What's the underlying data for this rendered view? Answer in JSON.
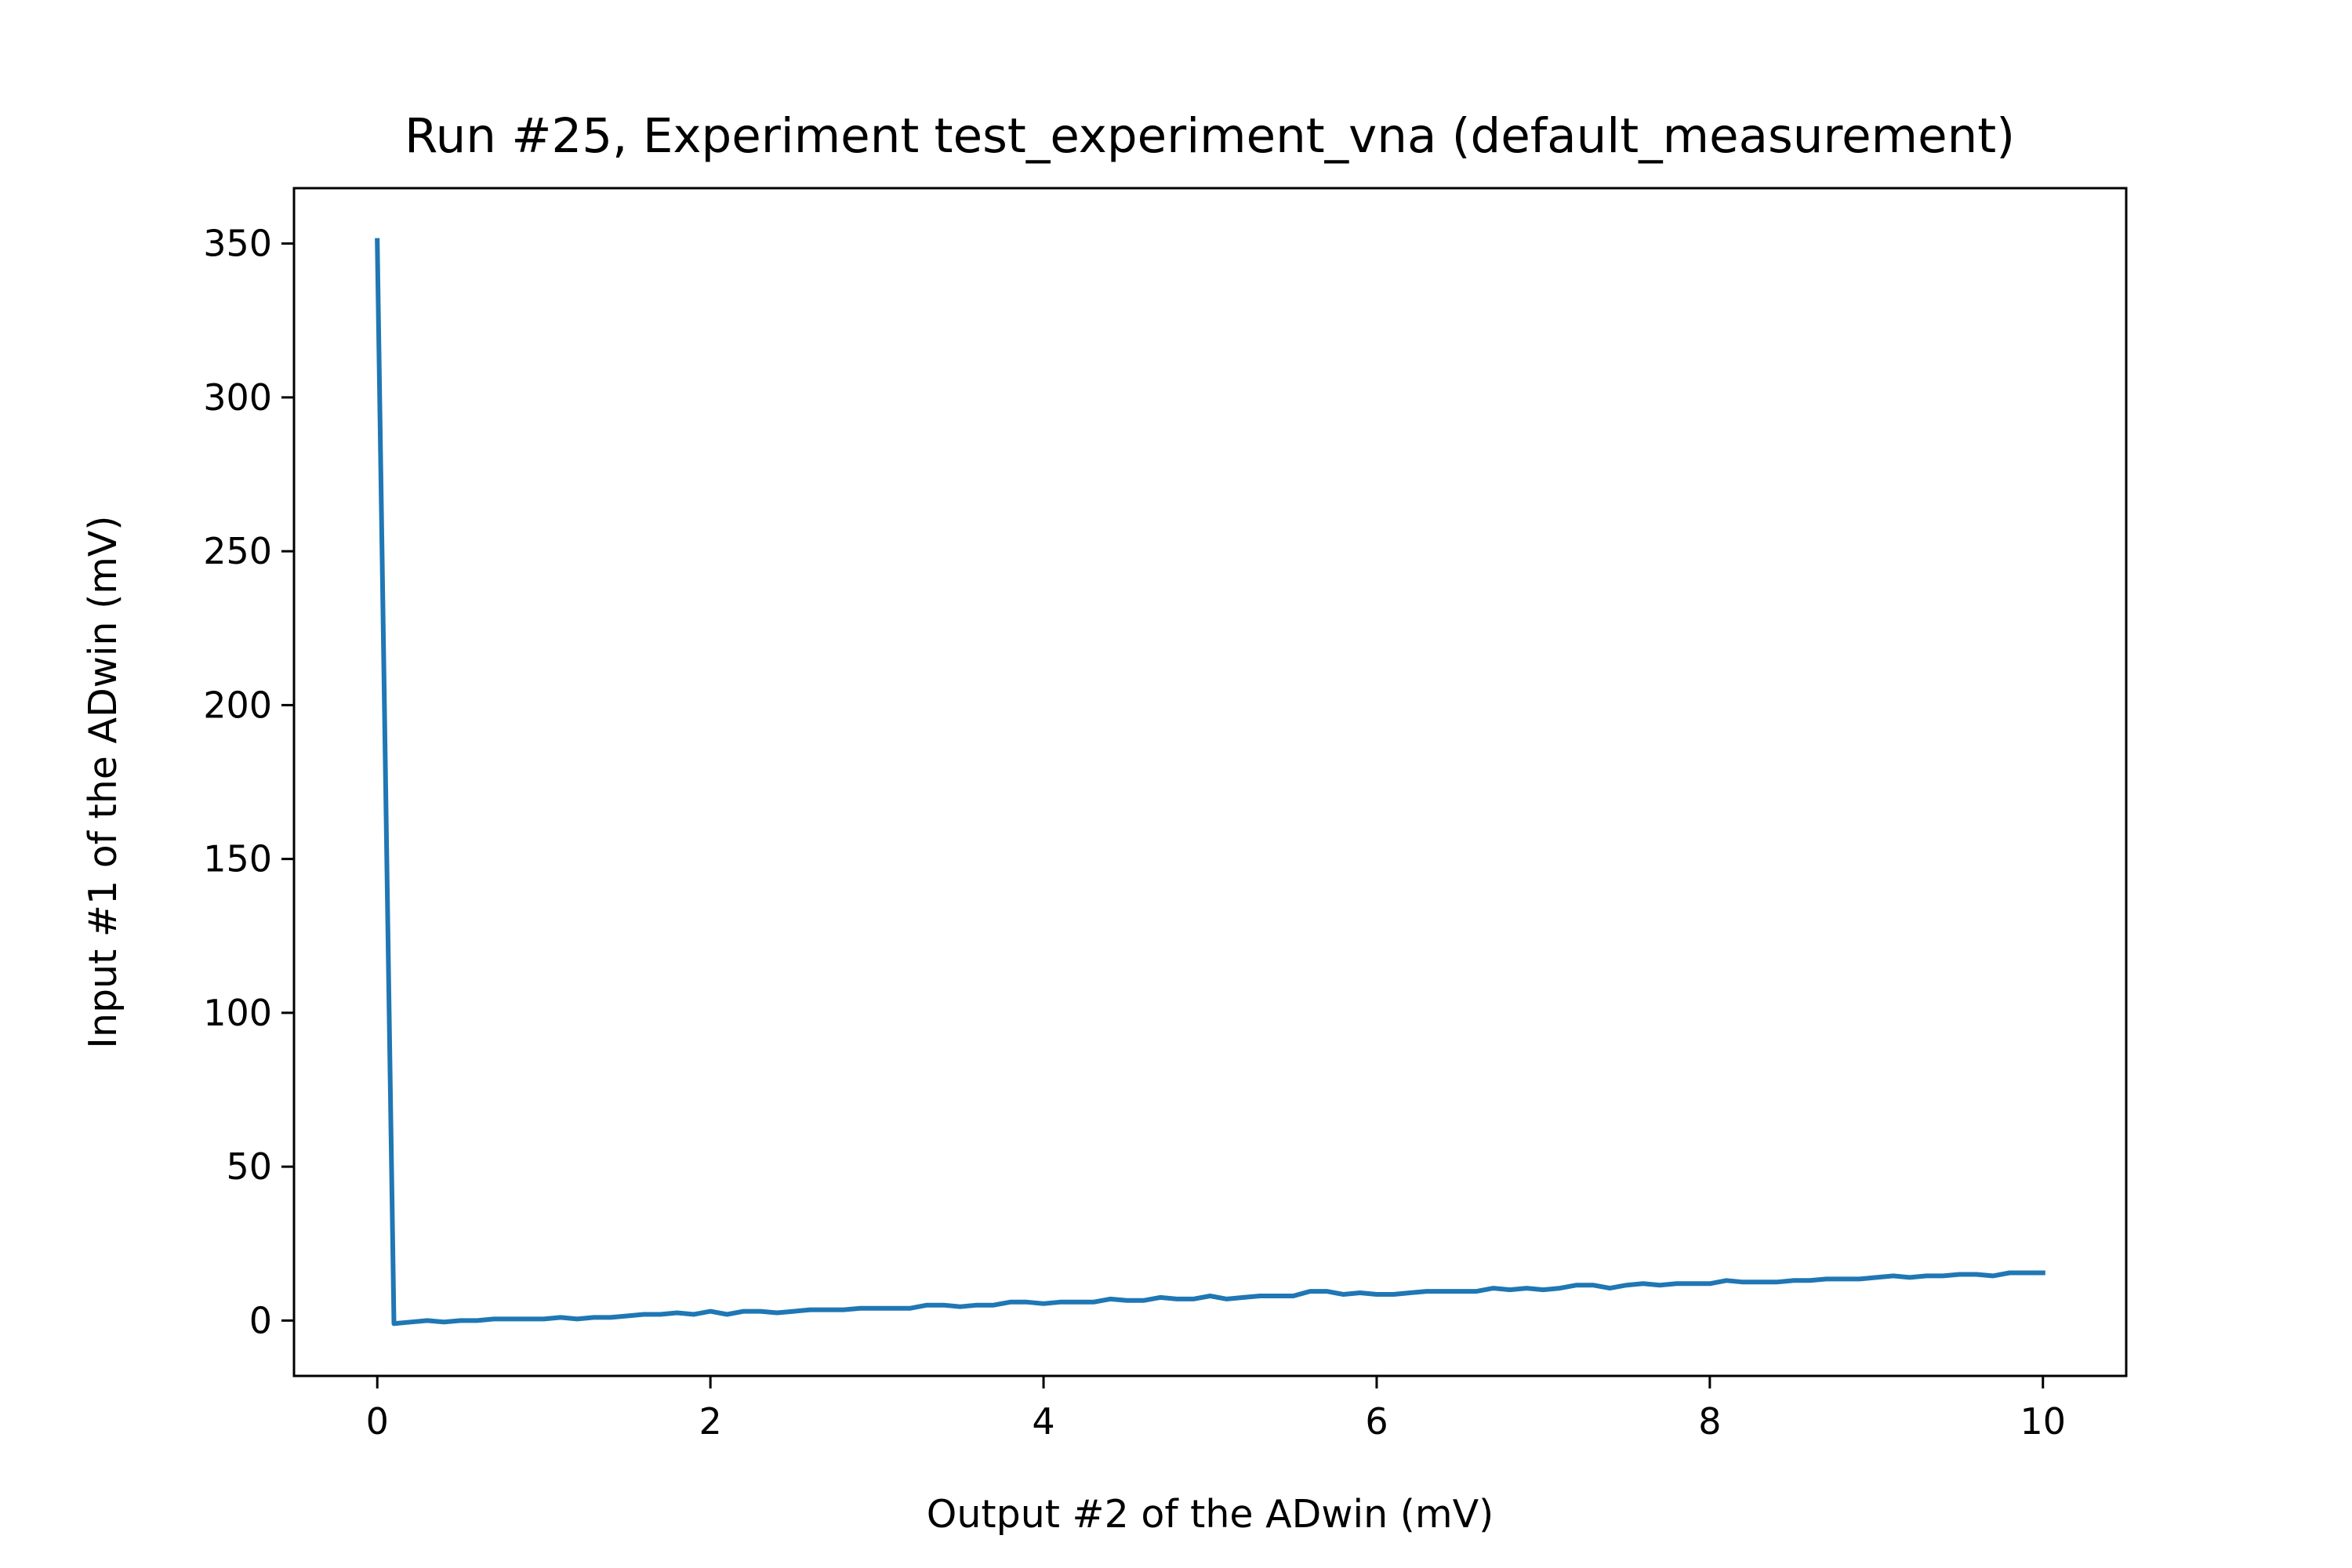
{
  "chart_data": {
    "type": "line",
    "title": "Run #25, Experiment test_experiment_vna (default_measurement)",
    "xlabel": "Output #2 of the ADwin (mV)",
    "ylabel": "Input #1 of the ADwin (mV)",
    "xlim": [
      -0.5,
      10.5
    ],
    "ylim": [
      -18,
      368
    ],
    "xticks": [
      0,
      2,
      4,
      6,
      8,
      10
    ],
    "yticks": [
      0,
      50,
      100,
      150,
      200,
      250,
      300,
      350
    ],
    "grid": false,
    "legend": "none",
    "series": [
      {
        "color": "#1f77b4",
        "x": [
          0,
          0.1,
          0.2,
          0.3,
          0.4,
          0.5,
          0.6,
          0.7,
          0.8,
          0.9,
          1.0,
          1.1,
          1.2,
          1.3,
          1.4,
          1.5,
          1.6,
          1.7,
          1.8,
          1.9,
          2.0,
          2.1,
          2.2,
          2.3,
          2.4,
          2.5,
          2.6,
          2.7,
          2.8,
          2.9,
          3.0,
          3.1,
          3.2,
          3.3,
          3.4,
          3.5,
          3.6,
          3.7,
          3.8,
          3.9,
          4.0,
          4.1,
          4.2,
          4.3,
          4.4,
          4.5,
          4.6,
          4.7,
          4.8,
          4.9,
          5.0,
          5.1,
          5.2,
          5.3,
          5.4,
          5.5,
          5.6,
          5.7,
          5.8,
          5.9,
          6.0,
          6.1,
          6.2,
          6.3,
          6.4,
          6.5,
          6.6,
          6.7,
          6.8,
          6.9,
          7.0,
          7.1,
          7.2,
          7.3,
          7.4,
          7.5,
          7.6,
          7.7,
          7.8,
          7.9,
          8.0,
          8.1,
          8.2,
          8.3,
          8.4,
          8.5,
          8.6,
          8.7,
          8.8,
          8.9,
          9.0,
          9.1,
          9.2,
          9.3,
          9.4,
          9.5,
          9.6,
          9.7,
          9.8,
          9.9,
          10.0
        ],
        "y": [
          351,
          -1,
          -0.5,
          0,
          -0.5,
          0,
          0,
          0.5,
          0.5,
          0.5,
          0.5,
          1,
          0.5,
          1,
          1,
          1.5,
          2,
          2,
          2.5,
          2,
          3,
          2,
          3,
          3,
          2.5,
          3,
          3.5,
          3.5,
          3.5,
          4,
          4,
          4,
          4,
          5,
          5,
          4.5,
          5,
          5,
          6,
          6,
          5.5,
          6,
          6,
          6,
          7,
          6.5,
          6.5,
          7.5,
          7,
          7,
          8,
          7,
          7.5,
          8,
          8,
          8,
          9.5,
          9.5,
          8.5,
          9,
          8.5,
          8.5,
          9,
          9.5,
          9.5,
          9.5,
          9.5,
          10.5,
          10,
          10.5,
          10,
          10.5,
          11.5,
          11.5,
          10.5,
          11.5,
          12,
          11.5,
          12,
          12,
          12,
          13,
          12.5,
          12.5,
          12.5,
          13,
          13,
          13.5,
          13.5,
          13.5,
          14,
          14.5,
          14,
          14.5,
          14.5,
          15,
          15,
          14.5,
          15.5,
          15.5,
          15.5
        ]
      }
    ]
  }
}
